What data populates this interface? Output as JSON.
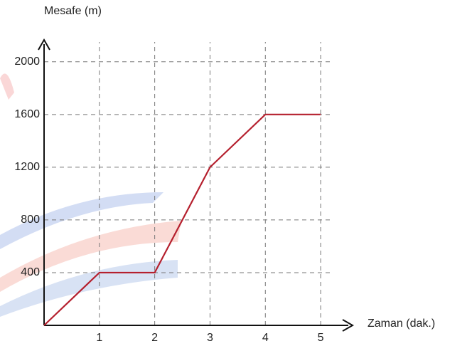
{
  "chart_data": {
    "type": "line",
    "y_label": "Mesafe (m)",
    "x_label": "Zaman (dak.)",
    "x": [
      0,
      1,
      2,
      3,
      4,
      5
    ],
    "series": [
      {
        "color": "#b5202e",
        "values": [
          0,
          400,
          400,
          1200,
          1600,
          1600
        ]
      }
    ],
    "xlim": [
      0,
      5.5
    ],
    "ylim": [
      0,
      2150
    ],
    "xticks": [
      1,
      2,
      3,
      4,
      5
    ],
    "yticks": [
      400,
      800,
      1200,
      1600,
      2000
    ],
    "grid": true
  }
}
